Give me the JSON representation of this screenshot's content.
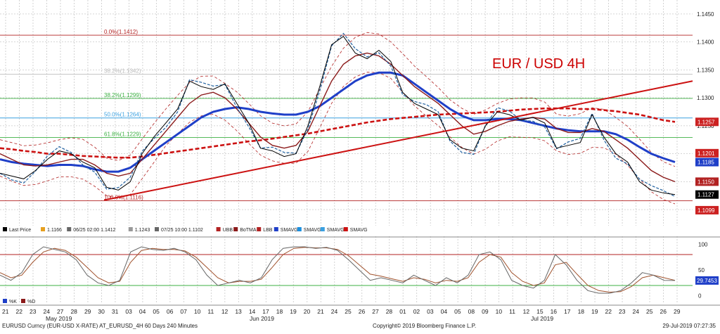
{
  "chart_data": [
    {
      "type": "line",
      "title": "EUR / USD 4H",
      "title_color": "#cc0000",
      "y_ticks": [
        1.145,
        1.14,
        1.135,
        1.13,
        1.125,
        1.12,
        1.115,
        1.11
      ],
      "ylim": [
        1.1075,
        1.1475
      ],
      "grid": true,
      "fib_levels": [
        {
          "label": "0.0%(1.1412)",
          "value": 1.1412,
          "color": "#b22222"
        },
        {
          "label": "38.2%(1.1342)",
          "value": 1.1342,
          "color": "#bbbbbb"
        },
        {
          "label": "38.2%(1.1299)",
          "value": 1.1299,
          "color": "#3cb043"
        },
        {
          "label": "50.0%(1.1264)",
          "value": 1.1264,
          "color": "#3aa0e0"
        },
        {
          "label": "61.8%(1.1229)",
          "value": 1.1229,
          "color": "#3cb043"
        },
        {
          "label": "100.0%(1.1116)",
          "value": 1.1116,
          "color": "#b22222"
        }
      ],
      "price_tags": [
        {
          "label": "1.1257",
          "value": 1.1257,
          "bg": "#cc2222"
        },
        {
          "label": "1.1201",
          "value": 1.1201,
          "bg": "#cc2222"
        },
        {
          "label": "1.1185",
          "value": 1.1185,
          "bg": "#1f3fc8"
        },
        {
          "label": "1.1150",
          "value": 1.115,
          "bg": "#b22222"
        },
        {
          "label": "1.1127",
          "value": 1.1127,
          "bg": "#000000"
        },
        {
          "label": "1.1099",
          "value": 1.1099,
          "bg": "#cc2222"
        }
      ],
      "series": [
        {
          "name": "Last Price",
          "color": "#000000",
          "values": [
            1.1165,
            1.116,
            1.1155,
            1.117,
            1.119,
            1.1205,
            1.12,
            1.1185,
            1.1175,
            1.114,
            1.1135,
            1.115,
            1.12,
            1.123,
            1.1255,
            1.128,
            1.133,
            1.132,
            1.1315,
            1.1325,
            1.129,
            1.1255,
            1.121,
            1.1205,
            1.1195,
            1.12,
            1.125,
            1.132,
            1.1395,
            1.141,
            1.138,
            1.137,
            1.1385,
            1.1365,
            1.131,
            1.129,
            1.128,
            1.127,
            1.1225,
            1.121,
            1.1205,
            1.125,
            1.1275,
            1.127,
            1.126,
            1.1265,
            1.1255,
            1.121,
            1.1215,
            1.122,
            1.127,
            1.123,
            1.12,
            1.1185,
            1.115,
            1.1135,
            1.113,
            1.1127
          ]
        },
        {
          "name": "BoTMA",
          "color": "#8b1a1a",
          "values": [
            1.12,
            1.119,
            1.118,
            1.1178,
            1.118,
            1.1185,
            1.119,
            1.119,
            1.118,
            1.1165,
            1.116,
            1.1165,
            1.119,
            1.1215,
            1.124,
            1.1265,
            1.129,
            1.1305,
            1.131,
            1.13,
            1.128,
            1.1255,
            1.123,
            1.1215,
            1.121,
            1.1215,
            1.124,
            1.1285,
            1.133,
            1.136,
            1.1375,
            1.138,
            1.1375,
            1.136,
            1.134,
            1.132,
            1.1305,
            1.129,
            1.127,
            1.125,
            1.1235,
            1.124,
            1.125,
            1.1258,
            1.1262,
            1.1265,
            1.1262,
            1.1245,
            1.1238,
            1.1238,
            1.1245,
            1.124,
            1.1225,
            1.121,
            1.119,
            1.117,
            1.1158,
            1.115
          ]
        },
        {
          "name": "SMAVG",
          "color": "#1f3fc8",
          "values": [
            1.119,
            1.1185,
            1.1182,
            1.118,
            1.1178,
            1.118,
            1.118,
            1.1178,
            1.1172,
            1.1168,
            1.1168,
            1.1175,
            1.119,
            1.1205,
            1.122,
            1.1235,
            1.125,
            1.1265,
            1.1275,
            1.128,
            1.1283,
            1.128,
            1.1275,
            1.1272,
            1.127,
            1.127,
            1.1275,
            1.1285,
            1.13,
            1.1315,
            1.133,
            1.134,
            1.1345,
            1.1345,
            1.134,
            1.1325,
            1.131,
            1.1295,
            1.128,
            1.1268,
            1.126,
            1.126,
            1.1262,
            1.1262,
            1.126,
            1.1255,
            1.125,
            1.1245,
            1.1242,
            1.124,
            1.124,
            1.124,
            1.1235,
            1.1225,
            1.1212,
            1.12,
            1.1192,
            1.1185
          ]
        },
        {
          "name": "SMAVG",
          "color": "#cc1111",
          "values": [
            1.121,
            1.1208,
            1.1205,
            1.1203,
            1.12,
            1.12,
            1.1198,
            1.1196,
            1.1195,
            1.1194,
            1.1193,
            1.1193,
            1.1195,
            1.1198,
            1.1201,
            1.1204,
            1.1207,
            1.121,
            1.1213,
            1.1216,
            1.1219,
            1.1222,
            1.1224,
            1.1227,
            1.123,
            1.1233,
            1.1236,
            1.124,
            1.1244,
            1.1248,
            1.1252,
            1.1256,
            1.1259,
            1.1262,
            1.1264,
            1.1266,
            1.1268,
            1.127,
            1.1271,
            1.1272,
            1.1273,
            1.1274,
            1.1275,
            1.1277,
            1.1279,
            1.128,
            1.1281,
            1.1281,
            1.1281,
            1.128,
            1.128,
            1.1278,
            1.1276,
            1.1273,
            1.127,
            1.1265,
            1.126,
            1.1257
          ]
        }
      ],
      "trendline": {
        "from": 1.1117,
        "to": 1.133,
        "color": "#cc1111"
      },
      "x_ticks": [
        "21",
        "22",
        "23",
        "24",
        "27",
        "28",
        "29",
        "30",
        "31",
        "03",
        "04",
        "05",
        "06",
        "07",
        "10",
        "11",
        "12",
        "13",
        "14",
        "17",
        "18",
        "19",
        "20",
        "21",
        "24",
        "25",
        "26",
        "27",
        "28",
        "01",
        "02",
        "03",
        "04",
        "05",
        "08",
        "09",
        "10",
        "11",
        "12",
        "15",
        "16",
        "17",
        "18",
        "19",
        "22",
        "23",
        "24",
        "25",
        "26",
        "29"
      ],
      "month_labels": [
        "May 2019",
        "Jun 2019",
        "Jul 2019"
      ],
      "legend": [
        {
          "label": "Last Price",
          "color": "#000000"
        },
        {
          "label": "1.1166",
          "color": "#e6a020"
        },
        {
          "label": "06/25 02:00 1.1412",
          "color": "#666666"
        },
        {
          "label": "1.1243",
          "color": "#999999"
        },
        {
          "label": "07/25 10:00 1.1102",
          "color": "#666666"
        },
        {
          "label": "UBB",
          "color": "#b22222"
        },
        {
          "label": "BoTMA",
          "color": "#8b1a1a"
        },
        {
          "label": "LBB",
          "color": "#b22222"
        },
        {
          "label": "SMAVG",
          "color": "#1f3fc8"
        },
        {
          "label": "SMAVG",
          "color": "#1a8fe0"
        },
        {
          "label": "SMAVG",
          "color": "#3aa0e0"
        },
        {
          "label": "SMAVG",
          "color": "#cc1111"
        }
      ]
    },
    {
      "type": "line",
      "title": "",
      "y_ticks": [
        100,
        50,
        0
      ],
      "ylim": [
        -10,
        110
      ],
      "hlines": [
        80,
        20
      ],
      "value_tag": "29.7453",
      "legend": [
        {
          "label": "%K",
          "color": "#1f3fc8"
        },
        {
          "label": "%D",
          "color": "#8b1a1a"
        }
      ],
      "series": [
        {
          "name": "%K",
          "color": "#666666",
          "values": [
            40,
            30,
            45,
            80,
            95,
            90,
            85,
            70,
            40,
            25,
            20,
            30,
            85,
            95,
            90,
            88,
            92,
            85,
            70,
            40,
            20,
            25,
            30,
            25,
            35,
            70,
            92,
            95,
            95,
            92,
            94,
            88,
            70,
            50,
            30,
            35,
            30,
            25,
            40,
            30,
            20,
            35,
            25,
            40,
            80,
            85,
            70,
            30,
            20,
            15,
            30,
            80,
            60,
            30,
            10,
            5,
            5,
            10,
            25,
            45,
            40,
            30,
            29.7
          ]
        },
        {
          "name": "%D",
          "color": "#a0522d",
          "values": [
            45,
            35,
            40,
            65,
            85,
            92,
            88,
            75,
            55,
            35,
            25,
            28,
            65,
            88,
            92,
            90,
            90,
            87,
            75,
            55,
            35,
            25,
            28,
            28,
            32,
            55,
            80,
            92,
            94,
            93,
            93,
            90,
            78,
            60,
            42,
            38,
            33,
            28,
            35,
            32,
            25,
            30,
            28,
            35,
            65,
            80,
            75,
            45,
            28,
            20,
            25,
            60,
            65,
            42,
            20,
            10,
            7,
            8,
            18,
            35,
            40,
            35,
            30
          ]
        }
      ]
    }
  ],
  "footer": {
    "left": "EURUSD Curncy (EUR-USD X-RATE) AT_EURUSD_4H 60 Days 240 Minutes",
    "center": "Copyright© 2019 Bloomberg Finance L.P.",
    "right": "29-Jul-2019 07:27:35"
  }
}
